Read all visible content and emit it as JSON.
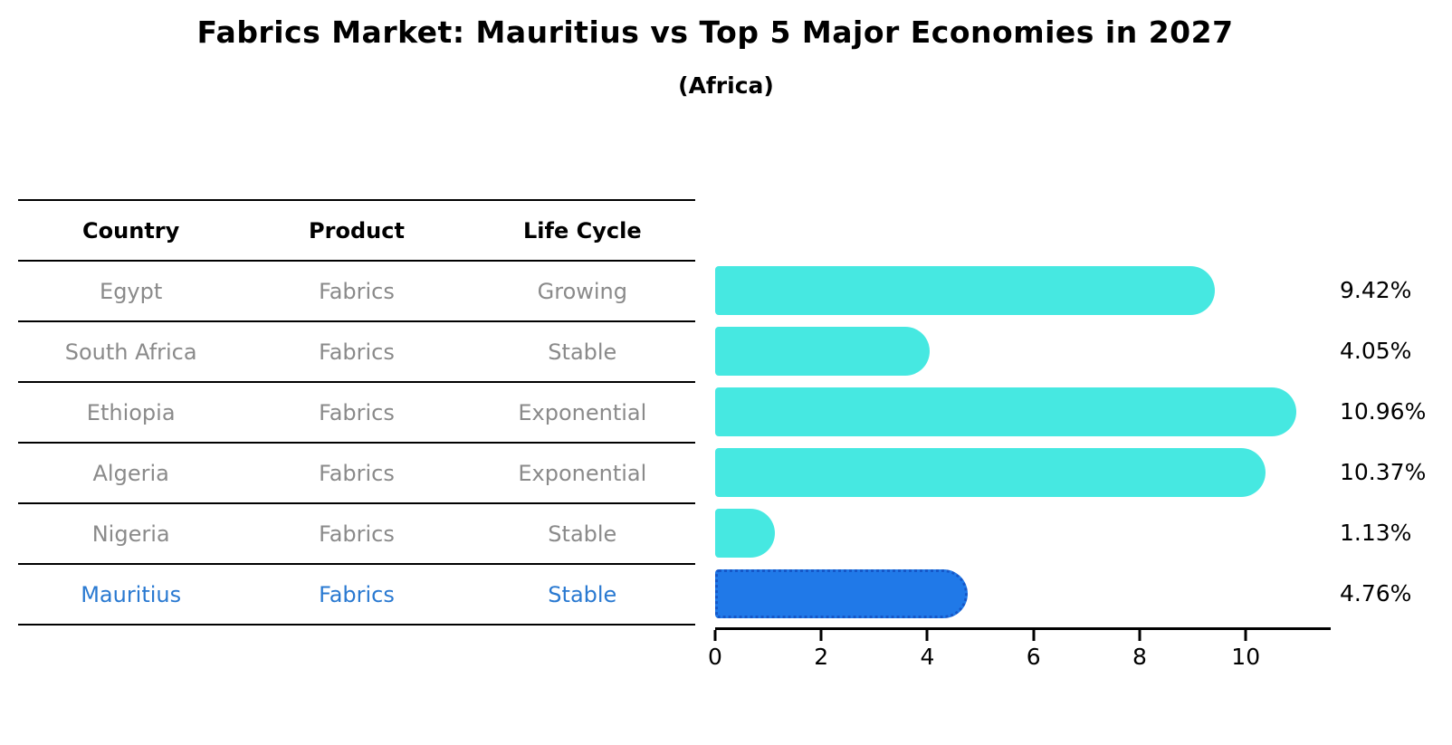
{
  "header": {
    "title": "Fabrics Market: Mauritius vs Top 5 Major Economies in 2027",
    "subtitle": "(Africa)"
  },
  "table": {
    "columns": [
      "Country",
      "Product",
      "Life Cycle"
    ],
    "rows": [
      {
        "country": "Egypt",
        "product": "Fabrics",
        "life_cycle": "Growing",
        "highlight": false
      },
      {
        "country": "South Africa",
        "product": "Fabrics",
        "life_cycle": "Stable",
        "highlight": false
      },
      {
        "country": "Ethiopia",
        "product": "Fabrics",
        "life_cycle": "Exponential",
        "highlight": false
      },
      {
        "country": "Algeria",
        "product": "Fabrics",
        "life_cycle": "Exponential",
        "highlight": false
      },
      {
        "country": "Nigeria",
        "product": "Fabrics",
        "life_cycle": "Stable",
        "highlight": false
      },
      {
        "country": "Mauritius",
        "product": "Fabrics",
        "life_cycle": "Stable",
        "highlight": true
      }
    ]
  },
  "chart_data": {
    "type": "bar",
    "orientation": "horizontal",
    "title": "Fabrics Market: Mauritius vs Top 5 Major Economies in 2027",
    "subtitle": "(Africa)",
    "categories": [
      "Egypt",
      "South Africa",
      "Ethiopia",
      "Algeria",
      "Nigeria",
      "Mauritius"
    ],
    "values": [
      9.42,
      4.05,
      10.96,
      10.37,
      1.13,
      4.76
    ],
    "value_labels": [
      "9.42%",
      "4.05%",
      "10.96%",
      "10.37%",
      "1.13%",
      "4.76%"
    ],
    "highlight_index": 5,
    "xlabel": "",
    "ylabel": "",
    "xlim": [
      0,
      11.6
    ],
    "x_ticks": [
      0,
      2,
      4,
      6,
      8,
      10
    ],
    "grid": false,
    "legend": false,
    "bar_color": "#46E8E1",
    "highlight_color": "#2079E8",
    "highlight_border_color": "#1557C8"
  },
  "colors": {
    "background": "#ffffff",
    "table_text": "#8a8a8a",
    "table_highlight_text": "#2979d1",
    "table_line": "#000000",
    "axis": "#000000"
  }
}
